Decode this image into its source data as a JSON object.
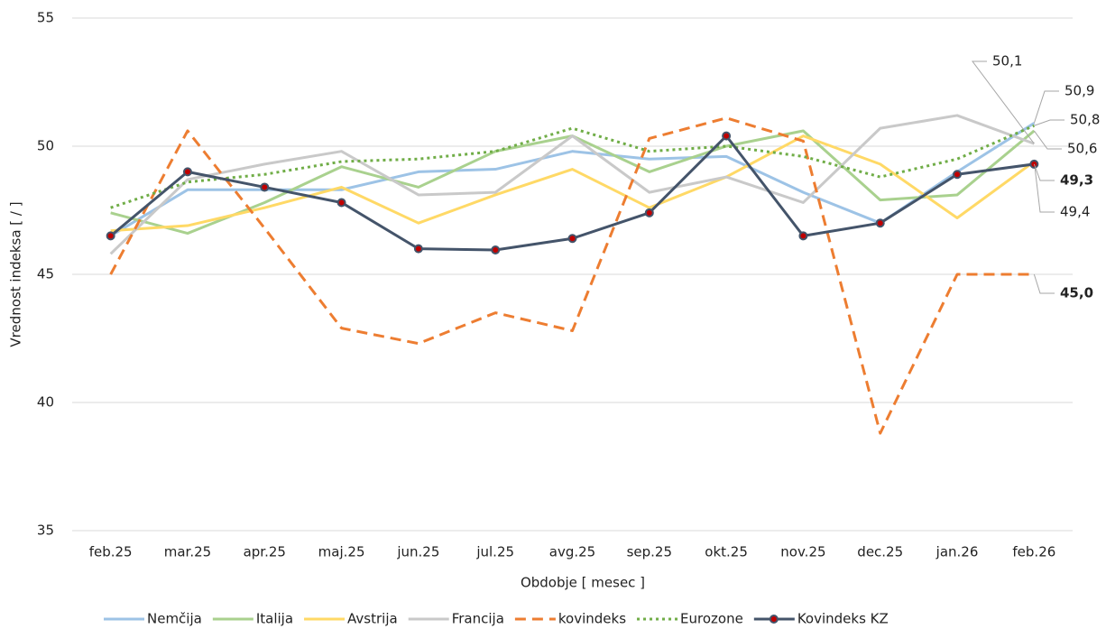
{
  "chart_data": {
    "type": "line",
    "x_label": "Obdobje [ mesec ]",
    "y_label": "Vrednost indeksa [ / ]",
    "categories": [
      "feb.25",
      "mar.25",
      "apr.25",
      "maj.25",
      "jun.25",
      "jul.25",
      "avg.25",
      "sep.25",
      "okt.25",
      "nov.25",
      "dec.25",
      "jan.26",
      "feb.26"
    ],
    "ylim": [
      35,
      55
    ],
    "yticks": [
      35,
      40,
      45,
      50,
      55
    ],
    "grid": true,
    "legend": "bottom",
    "series": [
      {
        "name": "Nemčija",
        "color": "#9dc3e6",
        "style": "solid",
        "marker": false,
        "values": [
          46.5,
          48.3,
          48.3,
          48.3,
          49.0,
          49.1,
          49.8,
          49.5,
          49.6,
          48.2,
          47.0,
          49.0,
          50.9
        ],
        "value_labels": [
          null,
          null,
          null,
          null,
          null,
          null,
          null,
          null,
          null,
          null,
          null,
          null,
          "50,9"
        ],
        "label_color": "#2eb872",
        "label_bold": false
      },
      {
        "name": "Italija",
        "color": "#a9d18e",
        "style": "solid",
        "marker": false,
        "values": [
          47.4,
          46.6,
          47.8,
          49.2,
          48.4,
          49.8,
          50.4,
          49.0,
          50.0,
          50.6,
          47.9,
          48.1,
          50.6
        ],
        "value_labels": [
          null,
          null,
          null,
          null,
          null,
          null,
          null,
          null,
          null,
          null,
          null,
          null,
          "50,6"
        ],
        "label_color": "#2eb872",
        "label_bold": false
      },
      {
        "name": "Avstrija",
        "color": "#ffd966",
        "style": "solid",
        "marker": false,
        "values": [
          46.7,
          46.9,
          47.6,
          48.4,
          47.0,
          48.1,
          49.1,
          47.6,
          48.8,
          50.4,
          49.3,
          47.2,
          49.4
        ],
        "value_labels": [
          null,
          null,
          null,
          null,
          null,
          null,
          null,
          null,
          null,
          null,
          null,
          null,
          "49,4"
        ],
        "label_color": "#ff3b3b",
        "label_bold": false
      },
      {
        "name": "Francija",
        "color": "#c9c9c9",
        "style": "solid",
        "marker": false,
        "values": [
          45.8,
          48.7,
          49.3,
          49.8,
          48.1,
          48.2,
          50.4,
          48.2,
          48.8,
          47.8,
          50.7,
          51.2,
          50.1
        ],
        "value_labels": [
          null,
          null,
          null,
          null,
          null,
          null,
          null,
          null,
          null,
          null,
          null,
          null,
          "50,1"
        ],
        "label_color": "#2eb872",
        "label_bold": false
      },
      {
        "name": "kovindeks",
        "color": "#ed7d31",
        "style": "dashed",
        "marker": false,
        "values": [
          45.0,
          50.6,
          46.8,
          42.9,
          42.3,
          43.5,
          42.8,
          50.3,
          51.1,
          50.2,
          38.8,
          45.0,
          45.0
        ],
        "value_labels": [
          null,
          null,
          null,
          null,
          null,
          null,
          null,
          null,
          null,
          null,
          null,
          null,
          "45,0"
        ],
        "label_color": "#ff0000",
        "label_bold": true
      },
      {
        "name": "Eurozone",
        "color": "#70ad47",
        "style": "dotted",
        "marker": false,
        "values": [
          47.6,
          48.6,
          48.9,
          49.4,
          49.5,
          49.8,
          50.7,
          49.8,
          50.0,
          49.6,
          48.8,
          49.5,
          50.8
        ],
        "value_labels": [
          null,
          null,
          null,
          null,
          null,
          null,
          null,
          null,
          null,
          null,
          null,
          null,
          "50,8"
        ],
        "label_color": "#2eb872",
        "label_bold": false
      },
      {
        "name": "Kovindeks KZ",
        "color": "#44546a",
        "style": "solid",
        "marker": true,
        "values": [
          46.5,
          49.0,
          48.4,
          47.8,
          46.0,
          45.95,
          46.4,
          47.4,
          50.4,
          46.5,
          47.0,
          48.9,
          49.3
        ],
        "value_labels": [
          null,
          null,
          null,
          null,
          null,
          null,
          null,
          null,
          null,
          null,
          null,
          null,
          "49,3"
        ],
        "label_color": "#ff0000",
        "label_bold": true
      }
    ]
  }
}
